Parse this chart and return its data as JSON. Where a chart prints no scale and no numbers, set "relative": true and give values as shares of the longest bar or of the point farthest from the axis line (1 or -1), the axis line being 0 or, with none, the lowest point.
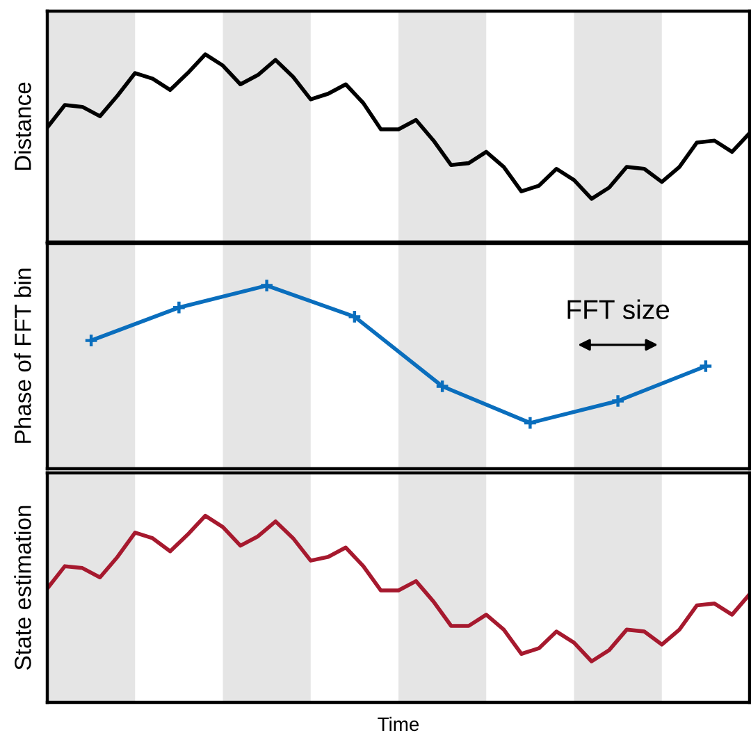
{
  "chart_data": [
    {
      "type": "line",
      "relative": true,
      "ylabel": "Distance",
      "marker": "none",
      "line_style": "solid",
      "categories": [
        null,
        null,
        null,
        null,
        null,
        null,
        null,
        null,
        null,
        null,
        null,
        null,
        null,
        null,
        null,
        null,
        null,
        null,
        null,
        null,
        null,
        null,
        null,
        null,
        null,
        null,
        null,
        null,
        null,
        null,
        null,
        null,
        null,
        null,
        null,
        null,
        null,
        null,
        null,
        null,
        null
      ],
      "series": [
        {
          "color": "#000000",
          "values": [
            0.61,
            0.73,
            0.72,
            0.67,
            0.78,
            0.9,
            0.87,
            0.81,
            0.9,
            1.0,
            0.94,
            0.84,
            0.89,
            0.97,
            0.88,
            0.76,
            0.79,
            0.84,
            0.74,
            0.6,
            0.6,
            0.65,
            0.54,
            0.41,
            0.42,
            0.48,
            0.4,
            0.27,
            0.3,
            0.39,
            0.33,
            0.23,
            0.29,
            0.4,
            0.39,
            0.32,
            0.4,
            0.53,
            0.54,
            0.48,
            0.58
          ]
        }
      ]
    },
    {
      "type": "line",
      "relative": true,
      "ylabel": "Phase of FFT bin",
      "marker": "cross",
      "line_style": "solid",
      "categories": [
        null,
        null,
        null,
        null,
        null,
        null,
        null,
        null
      ],
      "annotations": [
        "FFT size"
      ],
      "series": [
        {
          "color": "#0a6ebd",
          "values": [
            0.7,
            0.88,
            1,
            0.83,
            0.45,
            0.25,
            0.37,
            0.56
          ]
        }
      ]
    },
    {
      "type": "line",
      "relative": true,
      "ylabel": "State estimation",
      "xlabel": "Time",
      "marker": "none",
      "line_style": "solid",
      "categories": [
        null,
        null,
        null,
        null,
        null,
        null,
        null,
        null,
        null,
        null,
        null,
        null,
        null,
        null,
        null,
        null,
        null,
        null,
        null,
        null,
        null,
        null,
        null,
        null,
        null,
        null,
        null,
        null,
        null,
        null,
        null,
        null,
        null,
        null,
        null,
        null,
        null,
        null,
        null,
        null,
        null
      ],
      "series": [
        {
          "color": "#a6192e",
          "values": [
            0.61,
            0.73,
            0.72,
            0.67,
            0.78,
            0.91,
            0.88,
            0.81,
            0.9,
            1.0,
            0.94,
            0.84,
            0.89,
            0.97,
            0.88,
            0.76,
            0.78,
            0.83,
            0.73,
            0.6,
            0.6,
            0.65,
            0.54,
            0.41,
            0.41,
            0.47,
            0.39,
            0.26,
            0.29,
            0.38,
            0.32,
            0.22,
            0.28,
            0.39,
            0.38,
            0.31,
            0.39,
            0.52,
            0.53,
            0.47,
            0.58
          ]
        }
      ]
    }
  ]
}
